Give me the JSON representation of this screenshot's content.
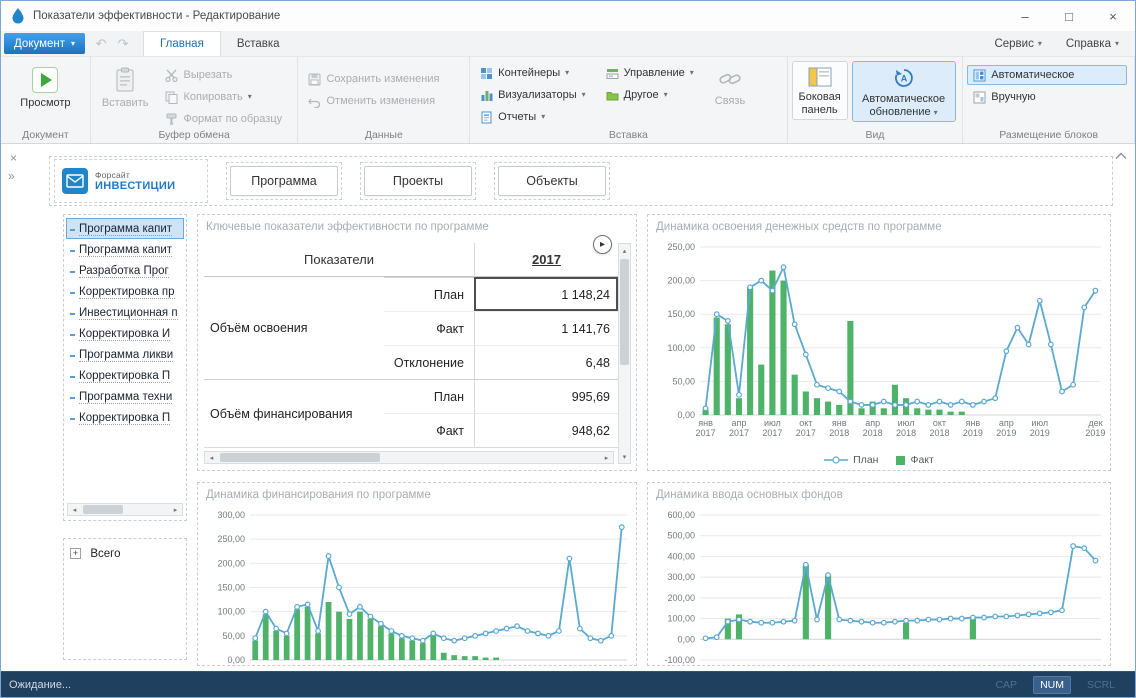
{
  "icons": {
    "caret": "▾",
    "undo": "↶",
    "redo": "↷",
    "minimize": "–",
    "maximize": "□",
    "close": "×",
    "panel_close": "×",
    "panel_expand": "»",
    "scroll_left": "◂",
    "scroll_right": "▸",
    "scroll_up": "▴",
    "scroll_down": "▾",
    "tree_plus": "+",
    "table_next": "▸"
  },
  "titlebar": {
    "title": "Показатели эффективности - Редактирование"
  },
  "menubar": {
    "document_button": "Документ",
    "tabs": [
      {
        "label": "Главная"
      },
      {
        "label": "Вставка"
      }
    ],
    "menus": [
      {
        "label": "Сервис"
      },
      {
        "label": "Справка"
      }
    ]
  },
  "ribbon": {
    "group_labels": [
      "Документ",
      "Буфер обмена",
      "Данные",
      "Вставка",
      "Вид",
      "Размещение блоков"
    ],
    "preview": "Просмотр",
    "paste": "Вставить",
    "cut": "Вырезать",
    "copy": "Копировать",
    "format_painter": "Формат по образцу",
    "save_changes": "Сохранить изменения",
    "undo_changes": "Отменить изменения",
    "containers": "Контейнеры",
    "visualizers": "Визуализаторы",
    "reports": "Отчеты",
    "management": "Управление",
    "other": "Другое",
    "link": "Связь",
    "side_panel": "Боковая панель",
    "auto_refresh": "Автоматическое обновление",
    "auto_layout": "Автоматическое",
    "manual_layout": "Вручную"
  },
  "dashboard_header": {
    "logo_top": "Форсайт",
    "logo_bottom": "ИНВЕСТИЦИИ",
    "nav": [
      "Программа",
      "Проекты",
      "Объекты"
    ]
  },
  "program_list": {
    "items": [
      "Программа капит",
      "Программа капит",
      "Разработка Прог",
      "Корректировка пр",
      "Инвестиционная п",
      "Корректировка И",
      "Программа ликви",
      "Корректировка П",
      "Программа техни",
      "Корректировка П"
    ]
  },
  "totals_tree": {
    "root": "Всего"
  },
  "kpi_table": {
    "title": "Ключевые показатели эффективности по программе",
    "header_indicators": "Показатели",
    "header_year": "2017",
    "groups": [
      {
        "name": "Объём освоения",
        "rows": [
          {
            "label": "План",
            "value": "1 148,24"
          },
          {
            "label": "Факт",
            "value": "1 141,76"
          },
          {
            "label": "Отклонение",
            "value": "6,48"
          }
        ]
      },
      {
        "name": "Объём финансирования",
        "rows": [
          {
            "label": "План",
            "value": "995,69"
          },
          {
            "label": "Факт",
            "value": "948,62"
          }
        ]
      }
    ]
  },
  "charts": {
    "osvoenie": {
      "type": "combo-bar-line",
      "title": "Динамика освоения денежных средств по программе",
      "ymin": 0,
      "ymax": 250,
      "ystep": 50,
      "legend_plan": "План",
      "legend_fact": "Факт",
      "plan": [
        10,
        150,
        140,
        30,
        190,
        200,
        185,
        220,
        135,
        90,
        45,
        40,
        35,
        20,
        15,
        15,
        20,
        15,
        15,
        20,
        15,
        20,
        15,
        20,
        15,
        20,
        25,
        95,
        130,
        105,
        170,
        105,
        35,
        45,
        160,
        185
      ],
      "fact": [
        8,
        145,
        135,
        25,
        190,
        75,
        215,
        200,
        60,
        35,
        25,
        20,
        15,
        140,
        10,
        20,
        10,
        45,
        25,
        10,
        8,
        8,
        5,
        5,
        0,
        0,
        0,
        0,
        0,
        0,
        0,
        0,
        0,
        0,
        0,
        0
      ],
      "x_labels": [
        {
          "i": 0,
          "m": "янв",
          "y": "2017"
        },
        {
          "i": 3,
          "m": "апр",
          "y": "2017"
        },
        {
          "i": 6,
          "m": "июл",
          "y": "2017"
        },
        {
          "i": 9,
          "m": "окт",
          "y": "2017"
        },
        {
          "i": 12,
          "m": "янв",
          "y": "2018"
        },
        {
          "i": 15,
          "m": "апр",
          "y": "2018"
        },
        {
          "i": 18,
          "m": "июл",
          "y": "2018"
        },
        {
          "i": 21,
          "m": "окт",
          "y": "2018"
        },
        {
          "i": 24,
          "m": "янв",
          "y": "2019"
        },
        {
          "i": 27,
          "m": "апр",
          "y": "2019"
        },
        {
          "i": 30,
          "m": "июл",
          "y": "2019"
        },
        {
          "i": 35,
          "m": "дек",
          "y": "2019"
        }
      ]
    },
    "finance": {
      "type": "combo-bar-line",
      "title": "Динамика финансирования по программе",
      "ymin": 0,
      "ymax": 300,
      "ystep": 50,
      "plan": [
        45,
        100,
        65,
        55,
        110,
        115,
        60,
        215,
        150,
        95,
        110,
        90,
        75,
        60,
        50,
        45,
        40,
        55,
        45,
        40,
        45,
        50,
        55,
        60,
        65,
        70,
        60,
        55,
        50,
        60,
        210,
        65,
        45,
        40,
        50,
        275
      ],
      "fact": [
        40,
        95,
        60,
        50,
        105,
        110,
        55,
        120,
        100,
        85,
        100,
        85,
        70,
        55,
        45,
        40,
        35,
        50,
        15,
        10,
        8,
        8,
        5,
        5,
        0,
        0,
        0,
        0,
        0,
        0,
        0,
        0,
        0,
        0,
        0,
        0
      ]
    },
    "funds": {
      "type": "combo-bar-line",
      "title": "Динамика ввода основных фондов",
      "ymin": -100,
      "ymax": 600,
      "ystep": 100,
      "plan": [
        5,
        10,
        85,
        95,
        85,
        80,
        80,
        85,
        90,
        360,
        95,
        310,
        95,
        90,
        85,
        80,
        80,
        85,
        90,
        90,
        95,
        95,
        100,
        100,
        105,
        105,
        110,
        110,
        115,
        120,
        125,
        130,
        140,
        450,
        440,
        380
      ],
      "fact": [
        0,
        0,
        100,
        120,
        0,
        0,
        0,
        0,
        0,
        360,
        0,
        310,
        0,
        0,
        0,
        0,
        0,
        0,
        80,
        0,
        0,
        0,
        0,
        0,
        100,
        0,
        0,
        0,
        0,
        0,
        0,
        0,
        0,
        0,
        0,
        0
      ]
    }
  },
  "statusbar": {
    "text": "Ожидание...",
    "indicators": [
      {
        "label": "CAP",
        "active": false
      },
      {
        "label": "NUM",
        "active": true
      },
      {
        "label": "SCRL",
        "active": false
      }
    ]
  }
}
